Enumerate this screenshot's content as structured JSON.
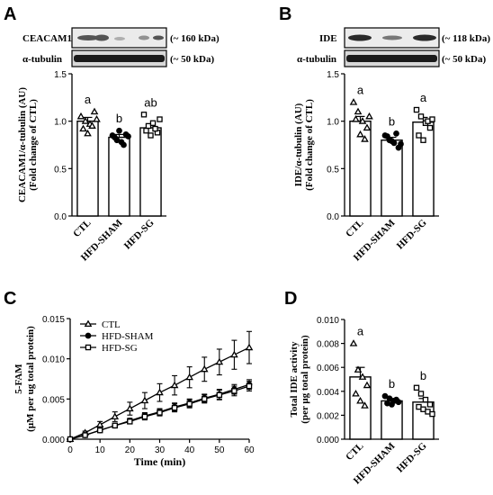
{
  "panels": {
    "A": {
      "letter": "A",
      "blot": {
        "target_label": "CEACAM1",
        "target_size": "(~ 160 kDa)",
        "loading_label": "α-tubulin",
        "loading_size": "(~ 50 kDa)"
      }
    },
    "B": {
      "letter": "B",
      "blot": {
        "target_label": "IDE",
        "target_size": "(~ 118 kDa)",
        "loading_label": "α-tubulin",
        "loading_size": "(~ 50 kDa)"
      }
    },
    "C": {
      "letter": "C"
    },
    "D": {
      "letter": "D"
    }
  },
  "chart_data": [
    {
      "id": "A",
      "type": "bar",
      "categories": [
        "CTL",
        "HFD-SHAM",
        "HFD-SG"
      ],
      "values": [
        1.0,
        0.83,
        0.93
      ],
      "errors": [
        0.04,
        0.03,
        0.04
      ],
      "markers": [
        "triangle",
        "circle",
        "square"
      ],
      "points": [
        [
          1.05,
          1.0,
          0.97,
          1.1,
          0.92,
          0.87,
          0.95,
          1.02
        ],
        [
          0.85,
          0.8,
          0.78,
          0.86,
          0.83,
          0.9,
          0.75,
          0.84
        ],
        [
          1.07,
          0.95,
          0.98,
          0.88,
          0.9,
          0.85,
          0.92,
          1.02
        ]
      ],
      "sig_letters": [
        "a",
        "b",
        "ab"
      ],
      "ylabel_lines": [
        "CEACAM1/α-tubulin (AU)",
        "(Fold change of CTL)"
      ],
      "ylim": [
        0,
        1.5
      ],
      "yticks": [
        "0.0",
        "0.5",
        "1.0",
        "1.5"
      ]
    },
    {
      "id": "B",
      "type": "bar",
      "categories": [
        "CTL",
        "HFD-SHAM",
        "HFD-SG"
      ],
      "values": [
        1.0,
        0.8,
        0.99
      ],
      "errors": [
        0.05,
        0.03,
        0.05
      ],
      "markers": [
        "triangle",
        "circle",
        "square"
      ],
      "points": [
        [
          1.2,
          1.1,
          1.0,
          0.93,
          1.02,
          0.86,
          0.81,
          1.05
        ],
        [
          0.85,
          0.8,
          0.77,
          0.72,
          0.84,
          0.79,
          0.87,
          0.76
        ],
        [
          1.12,
          1.05,
          0.98,
          0.93,
          0.85,
          0.8,
          1.0,
          1.02
        ]
      ],
      "sig_letters": [
        "a",
        "b",
        "a"
      ],
      "ylabel_lines": [
        "IDE/α-tubulin (AU)",
        "(Fold change of CTL)"
      ],
      "ylim": [
        0,
        1.5
      ],
      "yticks": [
        "0.0",
        "0.5",
        "1.0",
        "1.5"
      ]
    },
    {
      "id": "C",
      "type": "line",
      "x": [
        0,
        5,
        10,
        15,
        20,
        25,
        30,
        35,
        40,
        45,
        50,
        55,
        60
      ],
      "series": [
        {
          "name": "CTL",
          "marker": "triangle",
          "values": [
            0,
            0.0008,
            0.0018,
            0.0028,
            0.0038,
            0.0048,
            0.0058,
            0.0067,
            0.0077,
            0.0087,
            0.0096,
            0.0105,
            0.0114
          ],
          "errors": [
            0,
            0.0002,
            0.0004,
            0.0006,
            0.0008,
            0.001,
            0.0011,
            0.0012,
            0.0013,
            0.0015,
            0.0016,
            0.0018,
            0.002
          ]
        },
        {
          "name": "HFD-SHAM",
          "marker": "circle",
          "values": [
            0,
            0.0005,
            0.0011,
            0.0017,
            0.0023,
            0.0029,
            0.0034,
            0.004,
            0.0045,
            0.0051,
            0.0056,
            0.0062,
            0.0068
          ],
          "errors": [
            0,
            0.0001,
            0.0002,
            0.0003,
            0.0003,
            0.0004,
            0.0004,
            0.0005,
            0.0005,
            0.0005,
            0.0006,
            0.0006,
            0.0006
          ]
        },
        {
          "name": "HFD-SG",
          "marker": "square",
          "values": [
            0,
            0.0005,
            0.0011,
            0.0017,
            0.0022,
            0.0028,
            0.0033,
            0.0039,
            0.0044,
            0.005,
            0.0055,
            0.006,
            0.0066
          ],
          "errors": [
            0,
            0.0001,
            0.0002,
            0.0003,
            0.0003,
            0.0004,
            0.0004,
            0.0005,
            0.0005,
            0.0005,
            0.0006,
            0.0006,
            0.0006
          ]
        }
      ],
      "xlabel": "Time (min)",
      "ylabel_lines": [
        "5-FAM",
        "(μM per ug total protein)"
      ],
      "xlim": [
        0,
        60
      ],
      "ylim": [
        0,
        0.015
      ],
      "xticks": [
        "0",
        "10",
        "20",
        "30",
        "40",
        "50",
        "60"
      ],
      "yticks": [
        "0.000",
        "0.005",
        "0.010",
        "0.015"
      ],
      "legend": "top-left"
    },
    {
      "id": "D",
      "type": "bar",
      "categories": [
        "CTL",
        "HFD-SHAM",
        "HFD-SG"
      ],
      "values": [
        0.0052,
        0.0032,
        0.0031
      ],
      "errors": [
        0.0008,
        0.0002,
        0.0003
      ],
      "markers": [
        "triangle",
        "circle",
        "square"
      ],
      "points": [
        [
          0.008,
          0.0058,
          0.0052,
          0.0045,
          0.0038,
          0.0032,
          0.0028
        ],
        [
          0.0036,
          0.0034,
          0.0032,
          0.0031,
          0.003,
          0.0029,
          0.0033
        ],
        [
          0.0043,
          0.0038,
          0.0033,
          0.0029,
          0.0027,
          0.0025,
          0.0023,
          0.0021
        ]
      ],
      "sig_letters": [
        "a",
        "b",
        "b"
      ],
      "ylabel_lines": [
        "Total IDE activity",
        "(per μg total protein)"
      ],
      "ylim": [
        0,
        0.01
      ],
      "yticks": [
        "0.000",
        "0.002",
        "0.004",
        "0.006",
        "0.008",
        "0.010"
      ]
    }
  ]
}
